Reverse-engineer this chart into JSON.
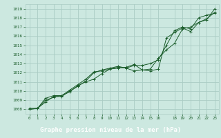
{
  "title": "Graphe pression niveau de la mer (hPa)",
  "bg_color": "#cce8e0",
  "plot_bg_color": "#cce8e0",
  "grid_color": "#aaccc4",
  "line_color": "#1a5c2a",
  "footer_bg": "#2a6e4a",
  "footer_text_color": "#ffffff",
  "xlim": [
    -0.5,
    23.5
  ],
  "ylim": [
    1007.5,
    1019.5
  ],
  "xticks": [
    0,
    1,
    2,
    3,
    4,
    5,
    6,
    7,
    8,
    9,
    10,
    11,
    12,
    13,
    14,
    15,
    16,
    18,
    19,
    20,
    21,
    22,
    23
  ],
  "xticklabels": [
    "0",
    "1",
    "2",
    "3",
    "4",
    "5",
    "6",
    "7",
    "8",
    "9",
    "10",
    "11",
    "12",
    "13",
    "14",
    "15",
    "16",
    "18",
    "19",
    "20",
    "21",
    "22",
    "23"
  ],
  "yticks": [
    1008,
    1009,
    1010,
    1011,
    1012,
    1013,
    1014,
    1015,
    1016,
    1017,
    1018,
    1019
  ],
  "series": [
    [
      1008.0,
      1008.1,
      1008.8,
      1009.4,
      1009.4,
      1010.0,
      1010.5,
      1011.1,
      1012.0,
      1012.3,
      1012.5,
      1012.7,
      1012.5,
      1012.8,
      1012.8,
      1013.0,
      1013.4,
      1015.0,
      1016.6,
      1017.0,
      1016.8,
      1018.0,
      1018.3,
      1018.5
    ],
    [
      1008.1,
      1008.1,
      1009.0,
      1009.3,
      1009.5,
      1009.9,
      1010.6,
      1011.0,
      1011.3,
      1011.9,
      1012.4,
      1012.5,
      1012.6,
      1012.9,
      1012.3,
      1012.2,
      1012.4,
      1015.8,
      1016.4,
      1016.9,
      1016.5,
      1017.5,
      1017.9,
      1018.6
    ],
    [
      1008.0,
      1008.1,
      1009.2,
      1009.5,
      1009.5,
      1010.1,
      1010.7,
      1011.3,
      1012.1,
      1012.2,
      1012.4,
      1012.6,
      1012.5,
      1012.2,
      1012.3,
      1012.4,
      1013.6,
      1014.5,
      1015.2,
      1016.8,
      1017.0,
      1017.5,
      1017.8,
      1019.0
    ]
  ]
}
